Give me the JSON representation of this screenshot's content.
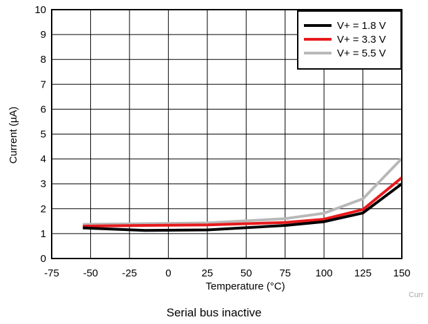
{
  "chart_data": {
    "type": "line",
    "title": "",
    "xlabel": "Temperature (°C)",
    "ylabel": "Current (µA)",
    "xlim": [
      -75,
      150
    ],
    "ylim": [
      0,
      10
    ],
    "xticks": [
      -75,
      -50,
      -25,
      0,
      25,
      50,
      75,
      100,
      125,
      150
    ],
    "yticks": [
      0,
      1,
      2,
      3,
      4,
      5,
      6,
      7,
      8,
      9,
      10
    ],
    "grid": true,
    "legend_position": "top-right",
    "series": [
      {
        "name": "V+ = 1.8 V",
        "color": "#000000",
        "x": [
          -55,
          -15,
          25,
          75,
          100,
          125,
          150
        ],
        "y": [
          1.23,
          1.13,
          1.15,
          1.33,
          1.48,
          1.83,
          3.0
        ]
      },
      {
        "name": "V+ = 3.3 V",
        "color": "#e8191c",
        "x": [
          -55,
          -15,
          25,
          75,
          100,
          125,
          150
        ],
        "y": [
          1.3,
          1.33,
          1.35,
          1.45,
          1.58,
          1.97,
          3.25
        ]
      },
      {
        "name": "V+ = 5.5 V",
        "color": "#b8b8b8",
        "x": [
          -55,
          -15,
          25,
          75,
          100,
          125,
          150
        ],
        "y": [
          1.37,
          1.4,
          1.43,
          1.6,
          1.82,
          2.4,
          4.02
        ]
      }
    ]
  },
  "watermark": "Curr",
  "caption": "Serial bus inactive"
}
